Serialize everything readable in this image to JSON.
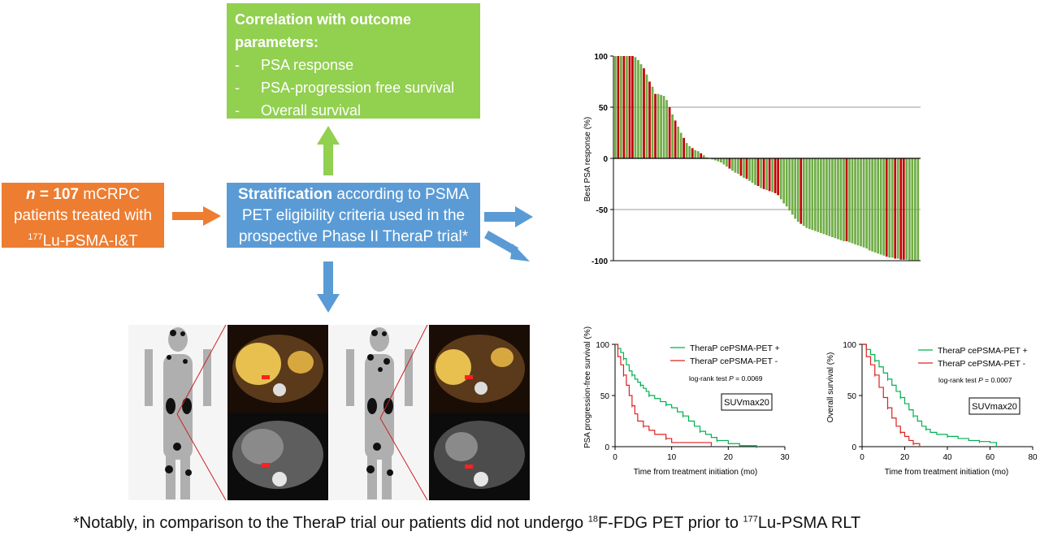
{
  "outcome_box": {
    "title": "Correlation with outcome parameters:",
    "items": [
      "PSA response",
      "PSA-progression free survival",
      "Overall survival"
    ]
  },
  "patients_box": {
    "n_label": "n",
    "n_value": "= 107",
    "line1_rest": " mCRPC",
    "line2": "patients treated with",
    "isotope": "177",
    "line3": "Lu-PSMA-I&T"
  },
  "strat_box": {
    "bold": "Stratification",
    "rest": " according to PSMA PET eligibility criteria used in the prospective Phase II TheraP trial*"
  },
  "footnote": {
    "part1": "*Notably, in comparison to the TheraP trial our patients did not undergo ",
    "sup1": "18",
    "part2": "F-FDG PET prior to ",
    "sup2": "177",
    "part3": "Lu-PSMA RLT"
  },
  "colors": {
    "green": "#92d050",
    "orange": "#ed7d31",
    "blue": "#5b9bd5",
    "bar_green": "#70ad47",
    "bar_red": "#c00000",
    "km_green": "#00b050",
    "km_red": "#e02020"
  },
  "chart_data": [
    {
      "type": "bar",
      "title": "",
      "ylabel": "Best PSA response (%)",
      "ylim": [
        -100,
        100
      ],
      "yticks": [
        100,
        50,
        0,
        -50,
        -100
      ],
      "gridlines": [
        50,
        -50
      ],
      "values": [
        100,
        100,
        100,
        100,
        100,
        100,
        100,
        99,
        96,
        92,
        88,
        82,
        75,
        70,
        63,
        63,
        62,
        61,
        57,
        50,
        43,
        37,
        31,
        25,
        20,
        15,
        12,
        10,
        8,
        7,
        5,
        3,
        1,
        0,
        -1,
        -2,
        -3,
        -4,
        -6,
        -8,
        -10,
        -12,
        -14,
        -15,
        -17,
        -19,
        -20,
        -22,
        -24,
        -26,
        -27,
        -29,
        -30,
        -31,
        -32,
        -33,
        -34,
        -36,
        -40,
        -44,
        -47,
        -51,
        -55,
        -59,
        -62,
        -64,
        -66,
        -68,
        -69,
        -70,
        -71,
        -72,
        -73,
        -74,
        -75,
        -76,
        -77,
        -78,
        -79,
        -80,
        -81,
        -81,
        -82,
        -83,
        -84,
        -85,
        -86,
        -87,
        -88,
        -90,
        -91,
        -92,
        -93,
        -94,
        -95,
        -96,
        -97,
        -97,
        -98,
        -98,
        -99,
        -99,
        -99,
        -100,
        -100,
        -100,
        -100
      ],
      "colors_by_group": "TheraP cePSMA-PET + (green) / TheraP cePSMA-PET - (red)",
      "red_indices": [
        1,
        3,
        5,
        6,
        10,
        12,
        14,
        19,
        21,
        24,
        27,
        30,
        33,
        40,
        44,
        46,
        50,
        52,
        54,
        56,
        57,
        65,
        81,
        95,
        98,
        100,
        101
      ]
    },
    {
      "type": "line",
      "subtype": "kaplan-meier",
      "ylabel": "PSA progression-free survival (%)",
      "xlabel": "Time from treatment initiation (mo)",
      "xlim": [
        0,
        30
      ],
      "ylim": [
        0,
        100
      ],
      "xticks": [
        0,
        10,
        20,
        30
      ],
      "yticks": [
        0,
        50,
        100
      ],
      "legend_position": "top-right",
      "annotation": "log-rank test P = 0.0069",
      "annotation_prefix": "log-rank test ",
      "annotation_p": "P",
      "annotation_value": " = 0.0069",
      "boxed_label": "SUVmax20",
      "series": [
        {
          "name": "TheraP cePSMA-PET +",
          "color": "#00b050",
          "x": [
            0,
            0.5,
            1,
            1.5,
            2,
            2.5,
            3,
            3.5,
            4,
            4.5,
            5,
            5.5,
            6,
            7,
            8,
            9,
            10,
            11,
            12,
            13,
            14,
            15,
            16,
            17,
            18,
            20,
            22,
            25
          ],
          "y": [
            100,
            96,
            92,
            86,
            80,
            74,
            70,
            66,
            63,
            60,
            57,
            54,
            50,
            47,
            44,
            41,
            38,
            34,
            30,
            25,
            20,
            15,
            12,
            9,
            6,
            3,
            1,
            0
          ]
        },
        {
          "name": "TheraP cePSMA-PET -",
          "color": "#e02020",
          "x": [
            0,
            0.5,
            1,
            1.5,
            2,
            2.5,
            3,
            3.5,
            4,
            5,
            6,
            7,
            9,
            10,
            17
          ],
          "y": [
            100,
            88,
            80,
            70,
            60,
            50,
            40,
            32,
            25,
            20,
            16,
            12,
            8,
            4,
            0
          ]
        }
      ]
    },
    {
      "type": "line",
      "subtype": "kaplan-meier",
      "ylabel": "Overall survival (%)",
      "xlabel": "Time from treatment initiation (mo)",
      "xlim": [
        0,
        80
      ],
      "ylim": [
        0,
        100
      ],
      "xticks": [
        0,
        20,
        40,
        60,
        80
      ],
      "yticks": [
        0,
        50,
        100
      ],
      "legend_position": "top-right",
      "annotation_prefix": "log-rank test ",
      "annotation_p": "P",
      "annotation_value": " = 0.0007",
      "boxed_label": "SUVmax20",
      "series": [
        {
          "name": "TheraP cePSMA-PET +",
          "color": "#00b050",
          "x": [
            0,
            2,
            4,
            6,
            8,
            10,
            12,
            14,
            16,
            18,
            20,
            22,
            24,
            26,
            28,
            30,
            32,
            35,
            40,
            45,
            50,
            55,
            60,
            63
          ],
          "y": [
            100,
            95,
            90,
            84,
            78,
            72,
            66,
            60,
            54,
            48,
            42,
            36,
            30,
            25,
            20,
            17,
            14,
            12,
            10,
            8,
            6,
            5,
            4,
            0
          ]
        },
        {
          "name": "TheraP cePSMA-PET -",
          "color": "#e02020",
          "x": [
            0,
            2,
            4,
            6,
            8,
            10,
            12,
            14,
            16,
            18,
            20,
            22,
            24,
            27
          ],
          "y": [
            100,
            88,
            80,
            70,
            58,
            48,
            38,
            28,
            20,
            14,
            10,
            6,
            3,
            0
          ]
        }
      ]
    }
  ]
}
